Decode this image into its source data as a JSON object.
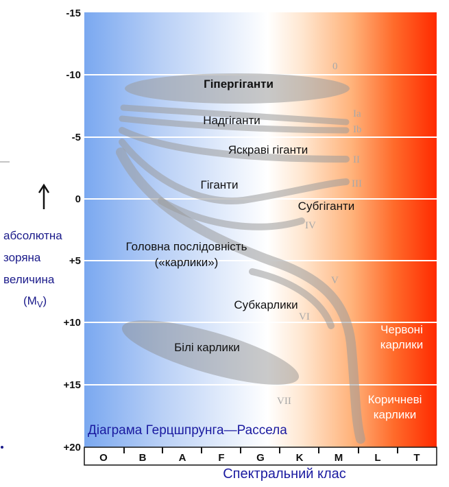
{
  "y_axis": {
    "ticks": [
      "-15",
      "-10",
      "-5",
      "0",
      "+5",
      "+10",
      "+15",
      "+20"
    ],
    "label_lines": [
      "абсолютна",
      "зоряна",
      "величина"
    ],
    "symbol": "(M",
    "symbol_sub": "V",
    "symbol_close": ")"
  },
  "x_axis": {
    "ticks": [
      "O",
      "B",
      "A",
      "F",
      "G",
      "K",
      "M",
      "L",
      "T"
    ],
    "label": "Спектральний клас"
  },
  "caption": "Діаграма Герцшпрунга—Рассела",
  "regions": {
    "hypergiants": "Гіпергіганти",
    "supergiants": "Надгіганти",
    "bright_giants": "Яскраві гіганти",
    "giants": "Гіганти",
    "subgiants": "Субгіганти",
    "main_sequence_1": "Головна послідовність",
    "main_sequence_2": "(«карлики»)",
    "subdwarfs": "Субкарлики",
    "white_dwarfs": "Білі карлики",
    "red_dwarfs_1": "Червоні",
    "red_dwarfs_2": "карлики",
    "brown_dwarfs_1": "Коричневі",
    "brown_dwarfs_2": "карлики"
  },
  "luminosity_classes": [
    "0",
    "Ia",
    "Ib",
    "II",
    "III",
    "IV",
    "V",
    "VI",
    "VII"
  ],
  "colors": {
    "hot": "#7aa8f0",
    "neutral": "#ffffff",
    "cool": "#ff3000",
    "caption": "#1a1aa0"
  }
}
